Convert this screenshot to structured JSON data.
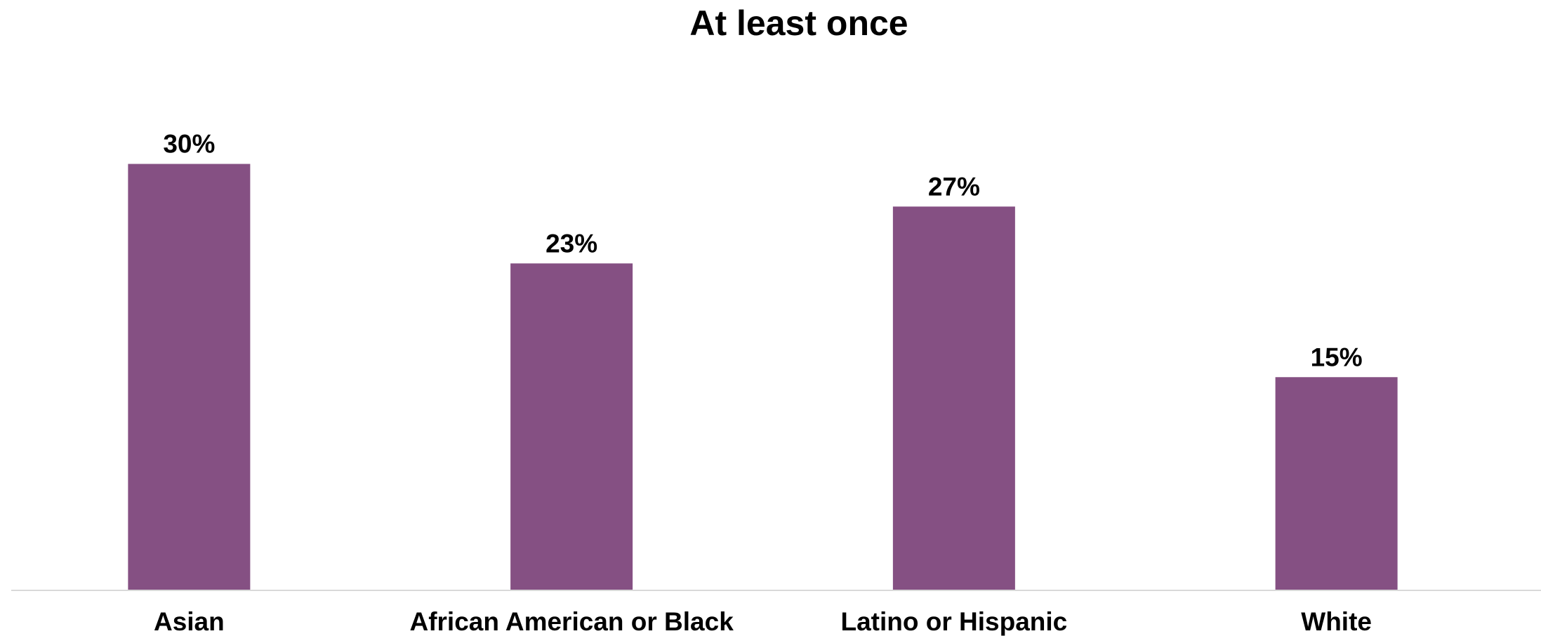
{
  "chart_data": {
    "type": "bar",
    "title": "At least once",
    "categories": [
      "Asian",
      "African American or Black",
      "Latino or Hispanic",
      "White"
    ],
    "values": [
      30,
      23,
      27,
      15
    ],
    "value_labels": [
      "30%",
      "23%",
      "27%",
      "15%"
    ],
    "unit": "%",
    "ylim": [
      0,
      40
    ],
    "grid": false,
    "legend": "none",
    "bar_color": "#855083",
    "axis_color": "#d9d9d9"
  }
}
